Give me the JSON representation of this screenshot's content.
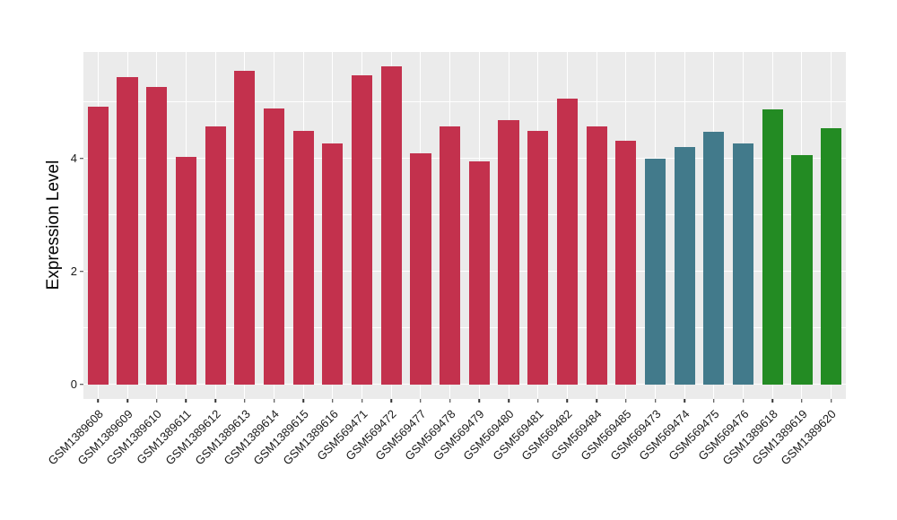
{
  "figure": {
    "background": "#FFFFFF"
  },
  "chart_data": {
    "type": "bar",
    "title": "",
    "xlabel": "",
    "ylabel": "Expression Level",
    "ylim": [
      0,
      5.87
    ],
    "yticks": [
      0,
      2,
      4
    ],
    "minor_gridlines": [
      1,
      3,
      5
    ],
    "grid_on": true,
    "legend_position": "none",
    "panel_background": "#EBEBEB",
    "grid_color": "#FFFFFF",
    "tick_mark_color": "#333333",
    "tick_label_color": "#1A1A1A",
    "categories": [
      "GSM1389608",
      "GSM1389609",
      "GSM1389610",
      "GSM1389611",
      "GSM1389612",
      "GSM1389613",
      "GSM1389614",
      "GSM1389615",
      "GSM1389616",
      "GSM569471",
      "GSM569472",
      "GSM569477",
      "GSM569478",
      "GSM569479",
      "GSM569480",
      "GSM569481",
      "GSM569482",
      "GSM569484",
      "GSM569485",
      "GSM569473",
      "GSM569474",
      "GSM569475",
      "GSM569476",
      "GSM1389618",
      "GSM1389619",
      "GSM1389620"
    ],
    "values": [
      4.92,
      5.43,
      5.27,
      4.03,
      4.57,
      5.55,
      4.88,
      4.48,
      4.27,
      5.47,
      5.62,
      4.08,
      4.56,
      3.95,
      4.67,
      4.48,
      5.05,
      4.57,
      4.31,
      4.0,
      4.2,
      4.47,
      4.27,
      4.87,
      4.06,
      4.53
    ],
    "bar_groups": [
      "red",
      "red",
      "red",
      "red",
      "red",
      "red",
      "red",
      "red",
      "red",
      "red",
      "red",
      "red",
      "red",
      "red",
      "red",
      "red",
      "red",
      "red",
      "red",
      "teal",
      "teal",
      "teal",
      "teal",
      "green",
      "green",
      "green"
    ],
    "group_colors": {
      "red": "#C3314D",
      "teal": "#427A8B",
      "green": "#238B23"
    }
  }
}
